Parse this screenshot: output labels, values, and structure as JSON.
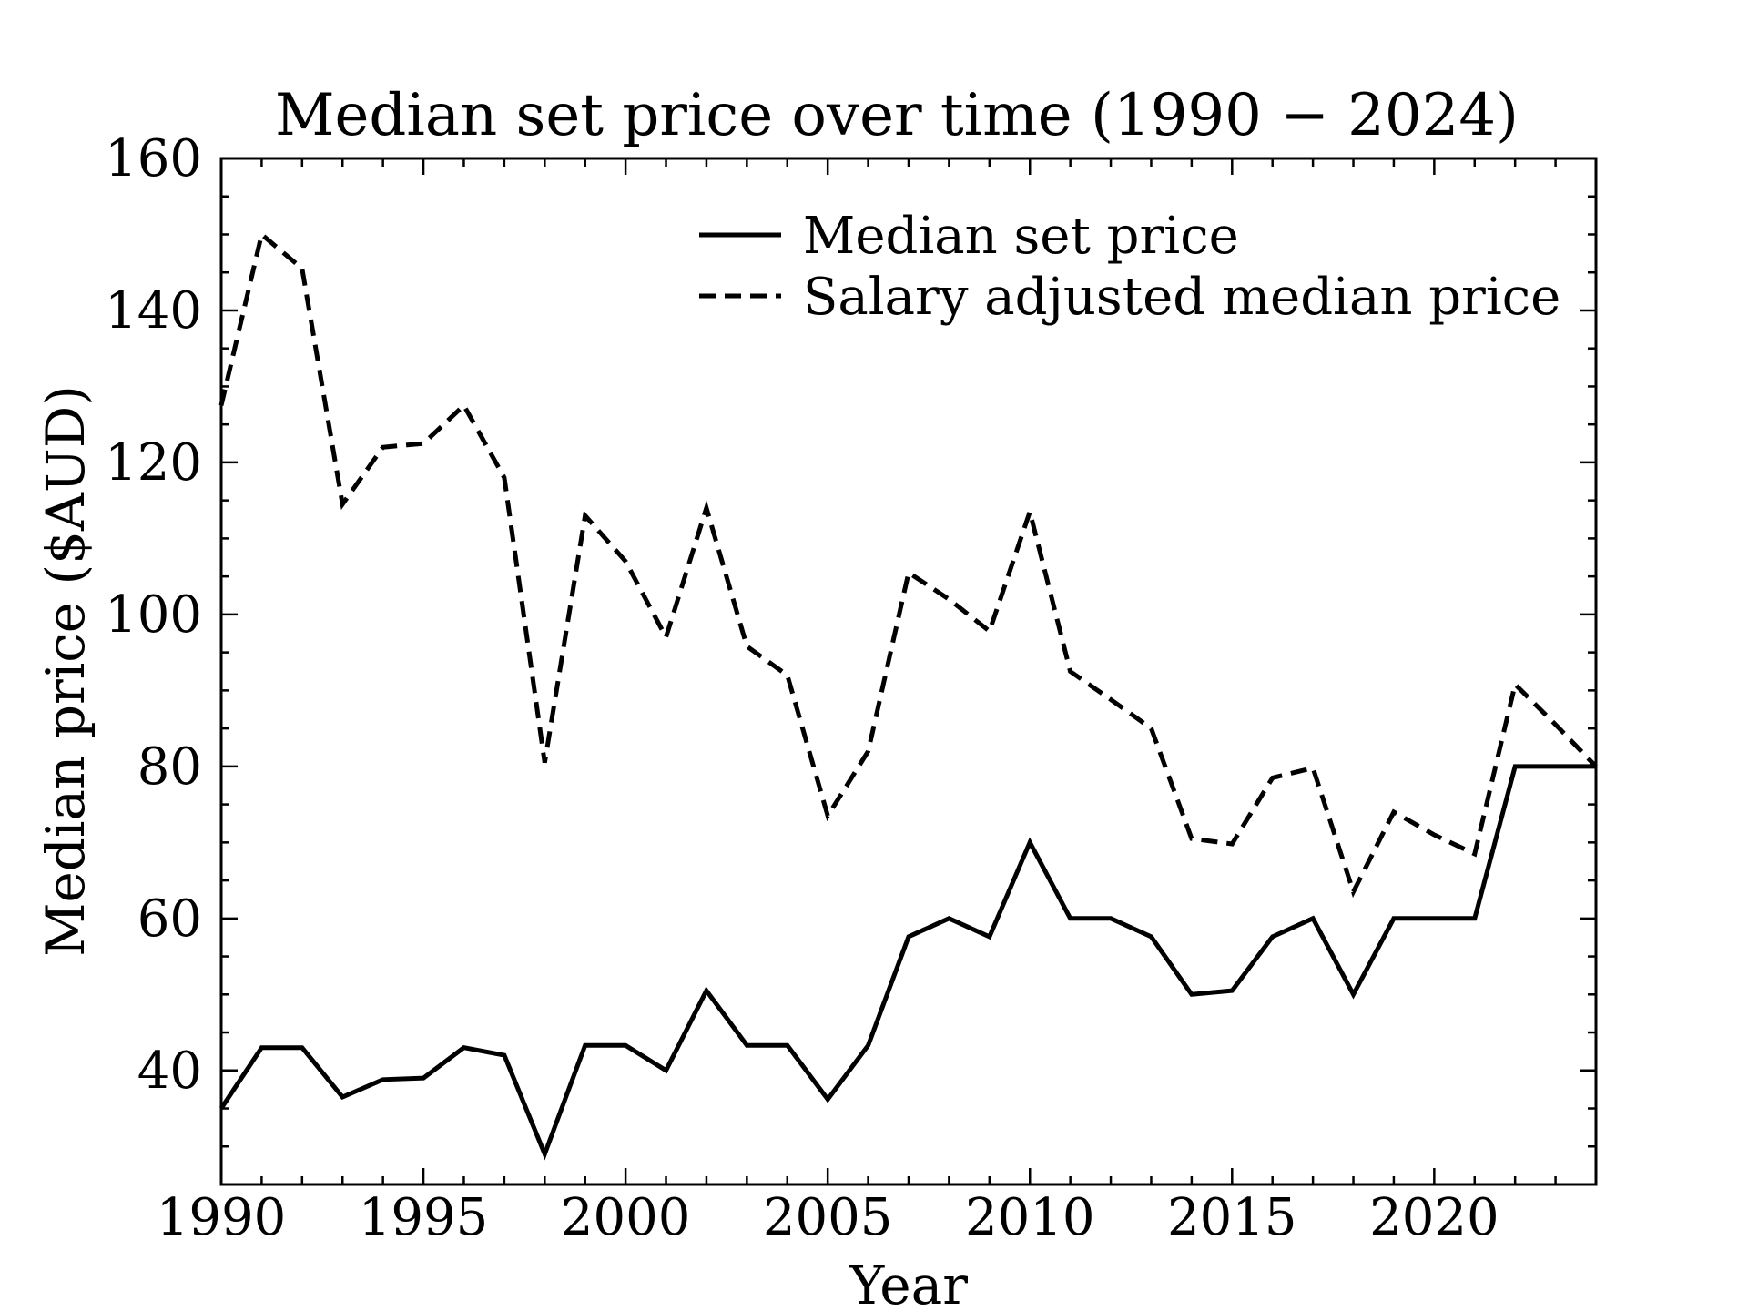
{
  "chart_data": {
    "type": "line",
    "title": "Median set price over time (1990 − 2024)",
    "xlabel": "Year",
    "ylabel": "Median price ($AUD)",
    "xlim": [
      1990,
      2024
    ],
    "ylim": [
      25,
      160
    ],
    "x_ticks": [
      "1990",
      "1995",
      "2000",
      "2005",
      "2010",
      "2015",
      "2020"
    ],
    "y_ticks": [
      "40",
      "60",
      "80",
      "100",
      "120",
      "140",
      "160"
    ],
    "grid": false,
    "legend_position": "top-right",
    "x": [
      1990,
      1991,
      1992,
      1993,
      1994,
      1995,
      1996,
      1997,
      1998,
      1999,
      2000,
      2001,
      2002,
      2003,
      2004,
      2005,
      2006,
      2007,
      2008,
      2009,
      2010,
      2011,
      2012,
      2013,
      2014,
      2015,
      2016,
      2017,
      2018,
      2019,
      2020,
      2021,
      2022,
      2023,
      2024
    ],
    "series": [
      {
        "name": "Median set price",
        "style": "solid",
        "color": "#000000",
        "values": [
          35,
          43,
          43,
          36.5,
          38.8,
          39,
          43,
          42,
          29,
          43.3,
          43.3,
          40,
          50.5,
          43.3,
          43.3,
          36.2,
          43.3,
          57.6,
          60,
          57.6,
          70,
          60,
          60,
          57.6,
          50,
          50.5,
          57.6,
          60,
          50,
          60,
          60,
          60,
          80,
          80,
          80
        ]
      },
      {
        "name": "Salary adjusted median price",
        "style": "dashed",
        "color": "#000000",
        "values": [
          127.5,
          150,
          145.5,
          114.5,
          122,
          122.5,
          127.5,
          118,
          80.5,
          113,
          107,
          97,
          114,
          95.8,
          92,
          73.5,
          82,
          105.5,
          102,
          97.8,
          113.5,
          92.5,
          88.8,
          85,
          70.5,
          69.8,
          78.5,
          79.8,
          63.5,
          74,
          71,
          68.5,
          90.8,
          85.5,
          80
        ]
      }
    ]
  }
}
